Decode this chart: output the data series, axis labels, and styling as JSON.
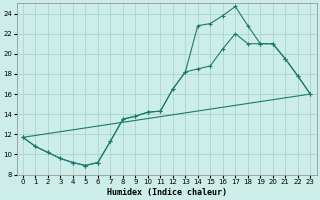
{
  "xlabel": "Humidex (Indice chaleur)",
  "background_color": "#cdeee8",
  "grid_color": "#aad4ce",
  "line_color": "#1a7a6e",
  "xlim": [
    -0.5,
    23.5
  ],
  "ylim": [
    8,
    25
  ],
  "xticks": [
    0,
    1,
    2,
    3,
    4,
    5,
    6,
    7,
    8,
    9,
    10,
    11,
    12,
    13,
    14,
    15,
    16,
    17,
    18,
    19,
    20,
    21,
    22,
    23
  ],
  "yticks": [
    8,
    10,
    12,
    14,
    16,
    18,
    20,
    22,
    24
  ],
  "line1_x": [
    0,
    1,
    2,
    3,
    4,
    5,
    6,
    7,
    8,
    9,
    10,
    11,
    12,
    13,
    14,
    15,
    16,
    17,
    18,
    19,
    20,
    21,
    22,
    23
  ],
  "line1_y": [
    11.7,
    10.8,
    10.2,
    9.6,
    9.2,
    8.9,
    9.2,
    11.3,
    13.5,
    13.8,
    14.2,
    14.3,
    16.5,
    18.2,
    18.5,
    18.8,
    20.5,
    22.0,
    21.0,
    21.0,
    21.0,
    19.5,
    17.8,
    16.0
  ],
  "line2_x": [
    0,
    1,
    2,
    3,
    4,
    5,
    6,
    7,
    8,
    9,
    10,
    11,
    12,
    13,
    14,
    15,
    16,
    17,
    18,
    19,
    20,
    21,
    22,
    23
  ],
  "line2_y": [
    11.7,
    10.8,
    10.2,
    9.6,
    9.2,
    8.9,
    9.2,
    11.3,
    13.5,
    13.8,
    14.2,
    14.3,
    16.5,
    18.2,
    22.8,
    23.0,
    23.8,
    24.7,
    22.8,
    21.0,
    21.0,
    19.5,
    17.8,
    16.0
  ],
  "line3_x": [
    0,
    23
  ],
  "line3_y": [
    11.7,
    16.0
  ]
}
